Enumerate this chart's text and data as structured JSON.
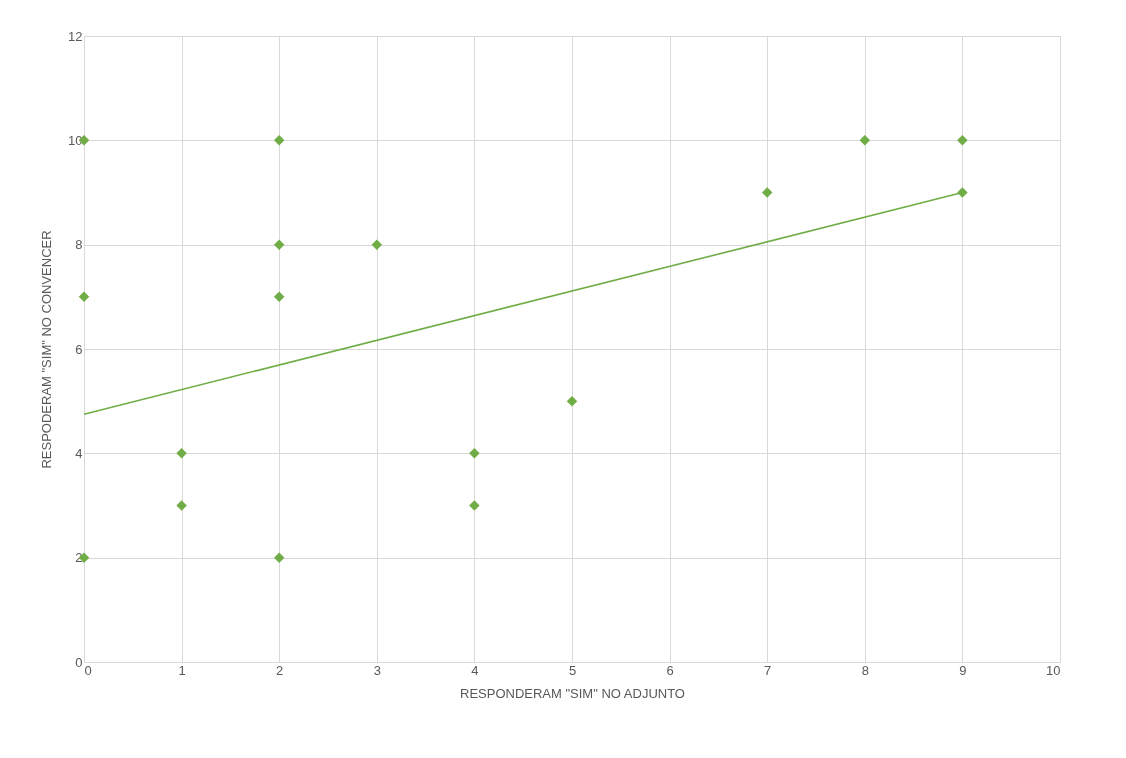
{
  "chart_data": {
    "type": "scatter",
    "xlabel": "RESPONDERAM \"SIM\" NO ADJUNTO",
    "ylabel": "RESPODERAM \"SIM\" NO CONVENCER",
    "series": [
      {
        "color": "#70ad47",
        "marker": "diamond",
        "x": [
          0,
          0,
          0,
          1,
          1,
          2,
          2,
          2,
          2,
          3,
          4,
          4,
          5,
          7,
          8,
          9,
          9
        ],
        "values": [
          10,
          7,
          2,
          4,
          3,
          10,
          8,
          7,
          2,
          8,
          4,
          3,
          5,
          9,
          10,
          10,
          9
        ]
      },
      {
        "type": "line",
        "color": "#70ad47",
        "x": [
          0,
          9
        ],
        "values": [
          4.75,
          9.0
        ]
      }
    ],
    "xlim": [
      0,
      10
    ],
    "xticks": [
      0,
      1,
      2,
      3,
      4,
      5,
      6,
      7,
      8,
      9,
      10
    ],
    "ylim": [
      0,
      12
    ],
    "yticks": [
      0,
      2,
      4,
      6,
      8,
      10,
      12
    ],
    "grid": true
  }
}
